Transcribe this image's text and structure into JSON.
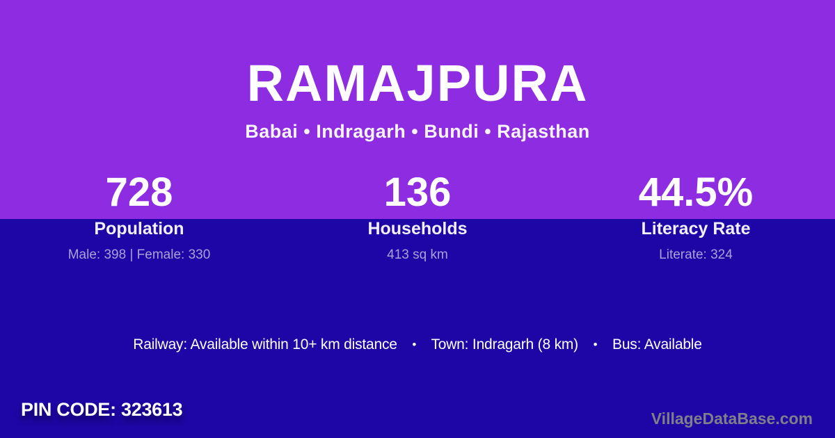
{
  "colors": {
    "top_background": "#8d2ce0",
    "bottom_background": "#1e06a6",
    "text_primary": "#ffffff",
    "text_muted": "#a9a1d8",
    "watermark_text": "#7f7f8a"
  },
  "header": {
    "village_name": "RAMAJPURA",
    "location_path": "Babai • Indragarh • Bundi • Rajasthan"
  },
  "stats": [
    {
      "value": "728",
      "label": "Population",
      "detail": "Male: 398 | Female: 330"
    },
    {
      "value": "136",
      "label": "Households",
      "detail": "413 sq km"
    },
    {
      "value": "44.5%",
      "label": "Literacy Rate",
      "detail": "Literate: 324"
    }
  ],
  "amenities": {
    "railway": "Railway: Available within 10+ km distance",
    "town": "Town: Indragarh (8 km)",
    "bus": "Bus: Available",
    "separator": "•"
  },
  "footer": {
    "pin_code": "PIN CODE: 323613",
    "watermark": "VillageDataBase.com"
  }
}
